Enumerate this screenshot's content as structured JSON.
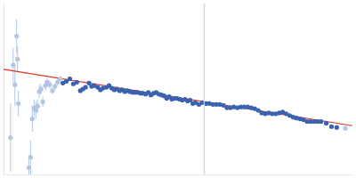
{
  "chart_data": {
    "type": "scatter",
    "xlim": [
      0,
      400
    ],
    "ylim": [
      0,
      200
    ],
    "tick_labels": false,
    "grid": false,
    "series": [
      {
        "type": "line",
        "color": "#c8d4e8",
        "x": [
          230,
          230
        ],
        "values": [
          0,
          200
        ]
      },
      {
        "type": "scatter",
        "color": "#b4c6e4",
        "marker": "circle",
        "x": [
          8,
          11,
          13,
          15,
          16,
          17,
          29,
          31,
          33,
          35,
          37,
          39,
          41,
          43,
          45,
          48,
          50,
          53,
          56,
          59,
          62,
          65,
          392
        ],
        "values": [
          43,
          128,
          105,
          162,
          135,
          83,
          8,
          20,
          65,
          78,
          75,
          80,
          97,
          100,
          85,
          104,
          108,
          105,
          98,
          103,
          108,
          112,
          54
        ],
        "errors": [
          40,
          20,
          25,
          20,
          15,
          15,
          15,
          20,
          15,
          10,
          10,
          8,
          8,
          6,
          6,
          6,
          5,
          5,
          4,
          4,
          4,
          3,
          2
        ]
      },
      {
        "type": "scatter",
        "color": "#3a62b0",
        "marker": "circle",
        "x": [
          68,
          72,
          76,
          80,
          84,
          88,
          91,
          94,
          98,
          101,
          104,
          108,
          111,
          114,
          118,
          121,
          124,
          127,
          130,
          133,
          136,
          139,
          142,
          145,
          148,
          151,
          154,
          157,
          160,
          163,
          166,
          169,
          172,
          175,
          178,
          181,
          184,
          187,
          190,
          193,
          196,
          199,
          202,
          205,
          208,
          211,
          214,
          217,
          220,
          224,
          228,
          232,
          236,
          240,
          244,
          248,
          252,
          256,
          260,
          264,
          268,
          272,
          276,
          280,
          284,
          288,
          292,
          296,
          300,
          304,
          308,
          312,
          316,
          320,
          324,
          328,
          332,
          336,
          340,
          344,
          348,
          352,
          356,
          360,
          364,
          370,
          376,
          382
        ],
        "values": [
          107,
          109,
          112,
          106,
          108,
          98,
          100,
          102,
          107,
          103,
          104,
          102,
          99,
          101,
          102,
          104,
          101,
          99,
          100,
          98,
          99,
          97,
          98,
          97,
          96,
          96,
          96,
          95,
          95,
          94,
          96,
          93,
          95,
          96,
          94,
          93,
          92,
          89,
          91,
          88,
          89,
          89,
          88,
          87,
          88,
          86,
          87,
          83,
          84,
          82,
          84,
          83,
          83,
          82,
          82,
          82,
          81,
          78,
          78,
          79,
          78,
          79,
          79,
          79,
          78,
          77,
          75,
          72,
          71,
          72,
          71,
          71,
          72,
          73,
          71,
          69,
          67,
          66,
          65,
          64,
          62,
          62,
          62,
          62,
          62,
          60,
          56,
          55
        ]
      },
      {
        "type": "line",
        "color": "#e03020",
        "x": [
          0,
          400
        ],
        "values": [
          123,
          57
        ]
      }
    ]
  }
}
